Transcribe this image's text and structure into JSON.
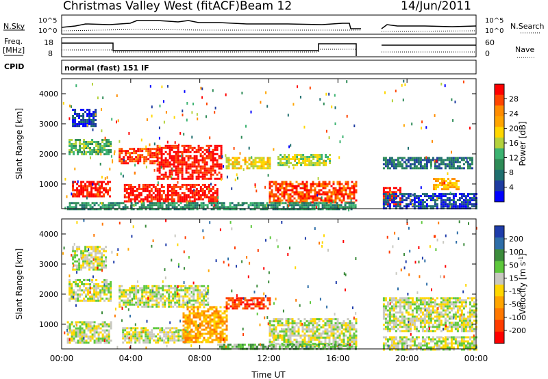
{
  "header": {
    "station": "Christmas Valley West (fitACF)",
    "beam": "Beam 12",
    "date": "14/Jun/2011"
  },
  "panels": {
    "nsky": {
      "left_label": "N.Sky",
      "left_ticks": [
        "10^5",
        "10^0"
      ],
      "right_label": "N.Search",
      "right_ticks": [
        "10^5",
        "10^0"
      ]
    },
    "freq": {
      "left_label_1": "Freq.",
      "left_label_2": "[MHz]",
      "left_ticks": [
        "18",
        "8"
      ],
      "right_label": "Nave",
      "right_ticks": [
        "60",
        "0"
      ]
    },
    "cpid": {
      "label": "CPID",
      "value": "normal (fast) 151 IF"
    }
  },
  "colorbars": {
    "power": {
      "label": "Power [dB]",
      "ticks": [
        "28",
        "24",
        "20",
        "16",
        "12",
        "8",
        "4"
      ],
      "colors": [
        "#ff0000",
        "#ff4500",
        "#ff8c00",
        "#ffa500",
        "#ffd700",
        "#b4d23c",
        "#3cb371",
        "#2e8b57",
        "#1f6f6f",
        "#1e3ca0",
        "#0000ff"
      ]
    },
    "velocity": {
      "label": "Velocity [m s^-1]",
      "ticks": [
        "200",
        "100",
        "50",
        "15",
        "-15",
        "-50",
        "-100",
        "-200"
      ],
      "colors": [
        "#1e3caa",
        "#2e6ea8",
        "#3c8c3c",
        "#5ec83c",
        "#c8c8c0",
        "#ffd700",
        "#ffa500",
        "#ff7800",
        "#ff3c00",
        "#ff0000"
      ]
    }
  },
  "chart_data": [
    {
      "type": "heatmap",
      "name": "power",
      "ylabel": "Slant Range [km]",
      "xlabel": "Time UT",
      "xticks": [
        "00:00",
        "04:00",
        "08:00",
        "12:00",
        "16:00",
        "20:00",
        "00:00"
      ],
      "yticks": [
        1000,
        2000,
        3000,
        4000
      ],
      "xlim_hours": [
        0,
        24
      ],
      "ylim_km": [
        180,
        4500
      ],
      "data_gap_hours": [
        17,
        18.6
      ],
      "regions": [
        {
          "t0": 0.6,
          "t1": 2.8,
          "r0": 600,
          "r1": 1100,
          "level": 0
        },
        {
          "t0": 0.4,
          "t1": 2.8,
          "r0": 2000,
          "r1": 2500,
          "level": 6
        },
        {
          "t0": 0.6,
          "t1": 2.0,
          "r0": 2900,
          "r1": 3500,
          "level": 9
        },
        {
          "t0": 3.3,
          "t1": 5.5,
          "r0": 1700,
          "r1": 2200,
          "level": 1
        },
        {
          "t0": 3.6,
          "t1": 9.0,
          "r0": 400,
          "r1": 1000,
          "level": 0
        },
        {
          "t0": 5.5,
          "t1": 9.2,
          "r0": 1200,
          "r1": 2300,
          "level": 0
        },
        {
          "t0": 9.5,
          "t1": 12.0,
          "r0": 1500,
          "r1": 1900,
          "level": 4
        },
        {
          "t0": 12.0,
          "t1": 17.0,
          "r0": 400,
          "r1": 1100,
          "level": 1
        },
        {
          "t0": 12.5,
          "t1": 15.5,
          "r0": 1600,
          "r1": 2000,
          "level": 5
        },
        {
          "t0": 18.6,
          "t1": 23.8,
          "r0": 1500,
          "r1": 1900,
          "level": 8
        },
        {
          "t0": 18.6,
          "t1": 19.6,
          "r0": 300,
          "r1": 900,
          "level": 0
        },
        {
          "t0": 21.5,
          "t1": 23.0,
          "r0": 800,
          "r1": 1200,
          "level": 3
        },
        {
          "t0": 0.3,
          "t1": 17.0,
          "r0": 180,
          "r1": 400,
          "level": 7
        },
        {
          "t0": 18.6,
          "t1": 24.0,
          "r0": 180,
          "r1": 700,
          "level": 9
        }
      ]
    },
    {
      "type": "heatmap",
      "name": "velocity",
      "ylabel": "Slant Range [km]",
      "xlabel": "Time UT",
      "xticks": [
        "00:00",
        "04:00",
        "08:00",
        "12:00",
        "16:00",
        "20:00",
        "00:00"
      ],
      "yticks": [
        1000,
        2000,
        3000,
        4000
      ],
      "xlim_hours": [
        0,
        24
      ],
      "ylim_km": [
        180,
        4500
      ],
      "data_gap_hours": [
        17,
        18.6
      ],
      "regions": [
        {
          "t0": 0.3,
          "t1": 2.8,
          "r0": 400,
          "r1": 1100,
          "level": 4
        },
        {
          "t0": 0.4,
          "t1": 2.8,
          "r0": 1800,
          "r1": 2500,
          "level": 4
        },
        {
          "t0": 0.6,
          "t1": 2.6,
          "r0": 2800,
          "r1": 3600,
          "level": 4
        },
        {
          "t0": 3.3,
          "t1": 8.5,
          "r0": 1600,
          "r1": 2300,
          "level": 4
        },
        {
          "t0": 3.5,
          "t1": 7.5,
          "r0": 400,
          "r1": 900,
          "level": 4
        },
        {
          "t0": 7.0,
          "t1": 9.5,
          "r0": 400,
          "r1": 1600,
          "level": 6
        },
        {
          "t0": 9.5,
          "t1": 12.0,
          "r0": 1500,
          "r1": 1900,
          "level": 8
        },
        {
          "t0": 12.0,
          "t1": 17.0,
          "r0": 300,
          "r1": 1200,
          "level": 4
        },
        {
          "t0": 9.0,
          "t1": 17.0,
          "r0": 180,
          "r1": 350,
          "level": 3
        },
        {
          "t0": 18.6,
          "t1": 24.0,
          "r0": 800,
          "r1": 1900,
          "level": 4
        },
        {
          "t0": 18.6,
          "t1": 24.0,
          "r0": 180,
          "r1": 600,
          "level": 4
        }
      ]
    }
  ]
}
